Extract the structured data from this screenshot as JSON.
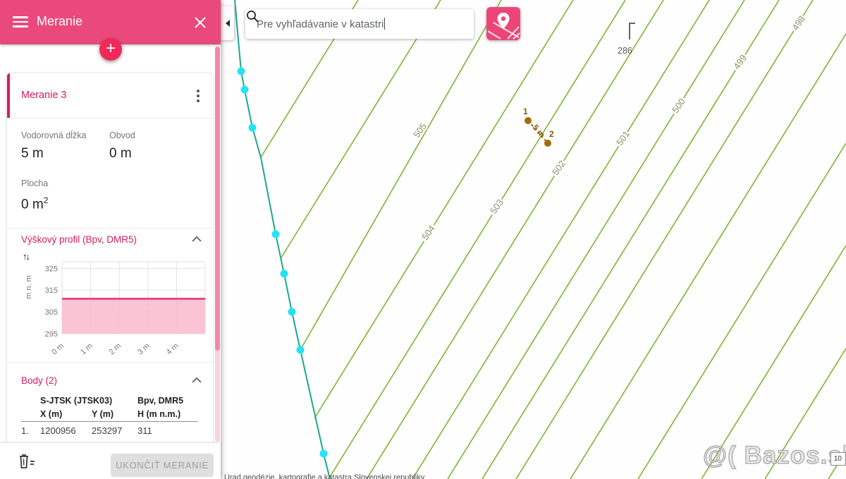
{
  "colors": {
    "accent_pink": "#e94a7b",
    "fab_pink": "#f1295b",
    "deep_pink": "#d81b60",
    "contour_green": "#7fb431",
    "contour_label": "#8d9168",
    "boundary_teal": "#1ca98c",
    "vertex_cyan": "#25e3f5",
    "measure_brown": "#a36b0b",
    "chart_line": "#ec2d67",
    "chart_fill": "#f9bace"
  },
  "sidebar": {
    "header": {
      "title": "Meranie"
    },
    "card": {
      "title": "Meranie 3",
      "metrics": {
        "len_label": "Vodorovná dĺžka",
        "len_value": "5 m",
        "obvod_label": "Obvod",
        "obvod_value": "0 m",
        "plocha_label": "Plocha",
        "plocha_value": "0 m",
        "plocha_sup": "2"
      },
      "profile_title": "Výškový profil (Bpv, DMR5)",
      "points_title": "Body (2)",
      "table": {
        "group1": "S-JTSK (JTSK03)",
        "group2": "Bpv, DMR5",
        "col_x": "X (m)",
        "col_y": "Y (m)",
        "col_h": "H (m n.m.)",
        "rows": [
          {
            "n": "1.",
            "x": "1200956",
            "y": "253297",
            "h": "311"
          }
        ]
      }
    },
    "footer": {
      "finish": "UKONČIŤ MERANIE"
    }
  },
  "search": {
    "value": "Pre vyhľadávanie v katastri"
  },
  "map": {
    "contour_labels": [
      "505",
      "504",
      "503",
      "502",
      "501",
      "500",
      "499",
      "498"
    ],
    "spot_height": "286",
    "measure": {
      "p1": "1",
      "p2": "2",
      "length": "5 m"
    },
    "scale": "10",
    "watermark": "@( Bazos.sk",
    "attribution": "Úrad geodézie, kartografie a katastra Slovenskej republiky"
  },
  "chart_data": {
    "type": "area",
    "title": "Výškový profil (Bpv, DMR5)",
    "x": [
      0,
      5
    ],
    "values": [
      311,
      311
    ],
    "xticks": [
      "0 m",
      "1 m",
      "2 m",
      "3 m",
      "4 m"
    ],
    "ytick_values": [
      295,
      305,
      315,
      325
    ],
    "xlim": [
      0,
      5
    ],
    "ylim": [
      295,
      328
    ],
    "ylabel": "m n. m",
    "grid": true,
    "line_color": "#ec2d67",
    "fill_color": "#f9bace"
  }
}
